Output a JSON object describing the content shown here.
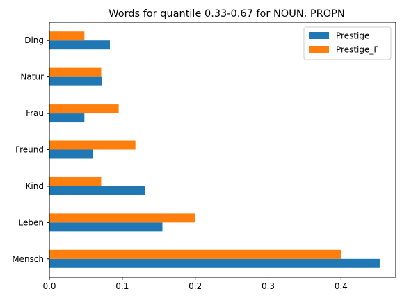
{
  "chart_data": {
    "type": "bar",
    "orientation": "horizontal",
    "title": "Words for quantile 0.33-0.67 for NOUN, PROPN",
    "categories": [
      "Mensch",
      "Leben",
      "Kind",
      "Freund",
      "Frau",
      "Natur",
      "Ding"
    ],
    "series": [
      {
        "name": "Prestige",
        "color": "#1f77b4",
        "values": [
          0.453,
          0.155,
          0.131,
          0.06,
          0.048,
          0.072,
          0.083
        ]
      },
      {
        "name": "Prestige_F",
        "color": "#ff7f0e",
        "values": [
          0.4,
          0.2,
          0.071,
          0.118,
          0.095,
          0.071,
          0.048
        ]
      }
    ],
    "x_ticks": [
      "0.0",
      "0.1",
      "0.2",
      "0.3",
      "0.4"
    ],
    "xlim": [
      0,
      0.475
    ],
    "xlabel": "",
    "ylabel": "",
    "grid": false,
    "legend_position": "top-right"
  }
}
